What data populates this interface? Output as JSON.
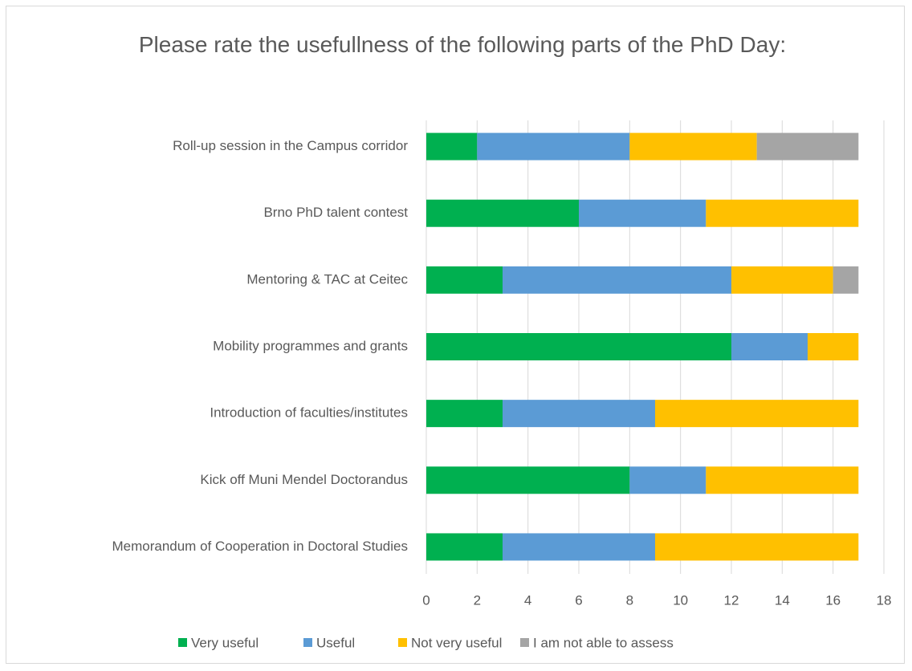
{
  "chart_data": {
    "type": "stacked_barh",
    "title": "Please rate the usefullness of the following parts of the PhD Day:",
    "categories": [
      "Roll-up session in the Campus corridor",
      "Brno PhD talent contest",
      "Mentoring & TAC at Ceitec",
      "Mobility programmes and grants",
      "Introduction of faculties/institutes",
      "Kick off Muni Mendel Doctorandus",
      "Memorandum of Cooperation in Doctoral Studies"
    ],
    "series": [
      {
        "name": "Very useful",
        "color": "#00b050",
        "values": [
          2,
          6,
          3,
          12,
          3,
          8,
          3
        ]
      },
      {
        "name": "Useful",
        "color": "#5b9bd5",
        "values": [
          6,
          5,
          9,
          3,
          6,
          3,
          6
        ]
      },
      {
        "name": "Not very useful",
        "color": "#ffc000",
        "values": [
          5,
          6,
          4,
          2,
          8,
          6,
          8
        ]
      },
      {
        "name": "I am not able to assess",
        "color": "#a5a5a5",
        "values": [
          4,
          0,
          1,
          0,
          0,
          0,
          0
        ]
      }
    ],
    "xlim": [
      0,
      18
    ],
    "xticks": [
      0,
      2,
      4,
      6,
      8,
      10,
      12,
      14,
      16,
      18
    ],
    "grid": true,
    "legend": "bottom"
  }
}
